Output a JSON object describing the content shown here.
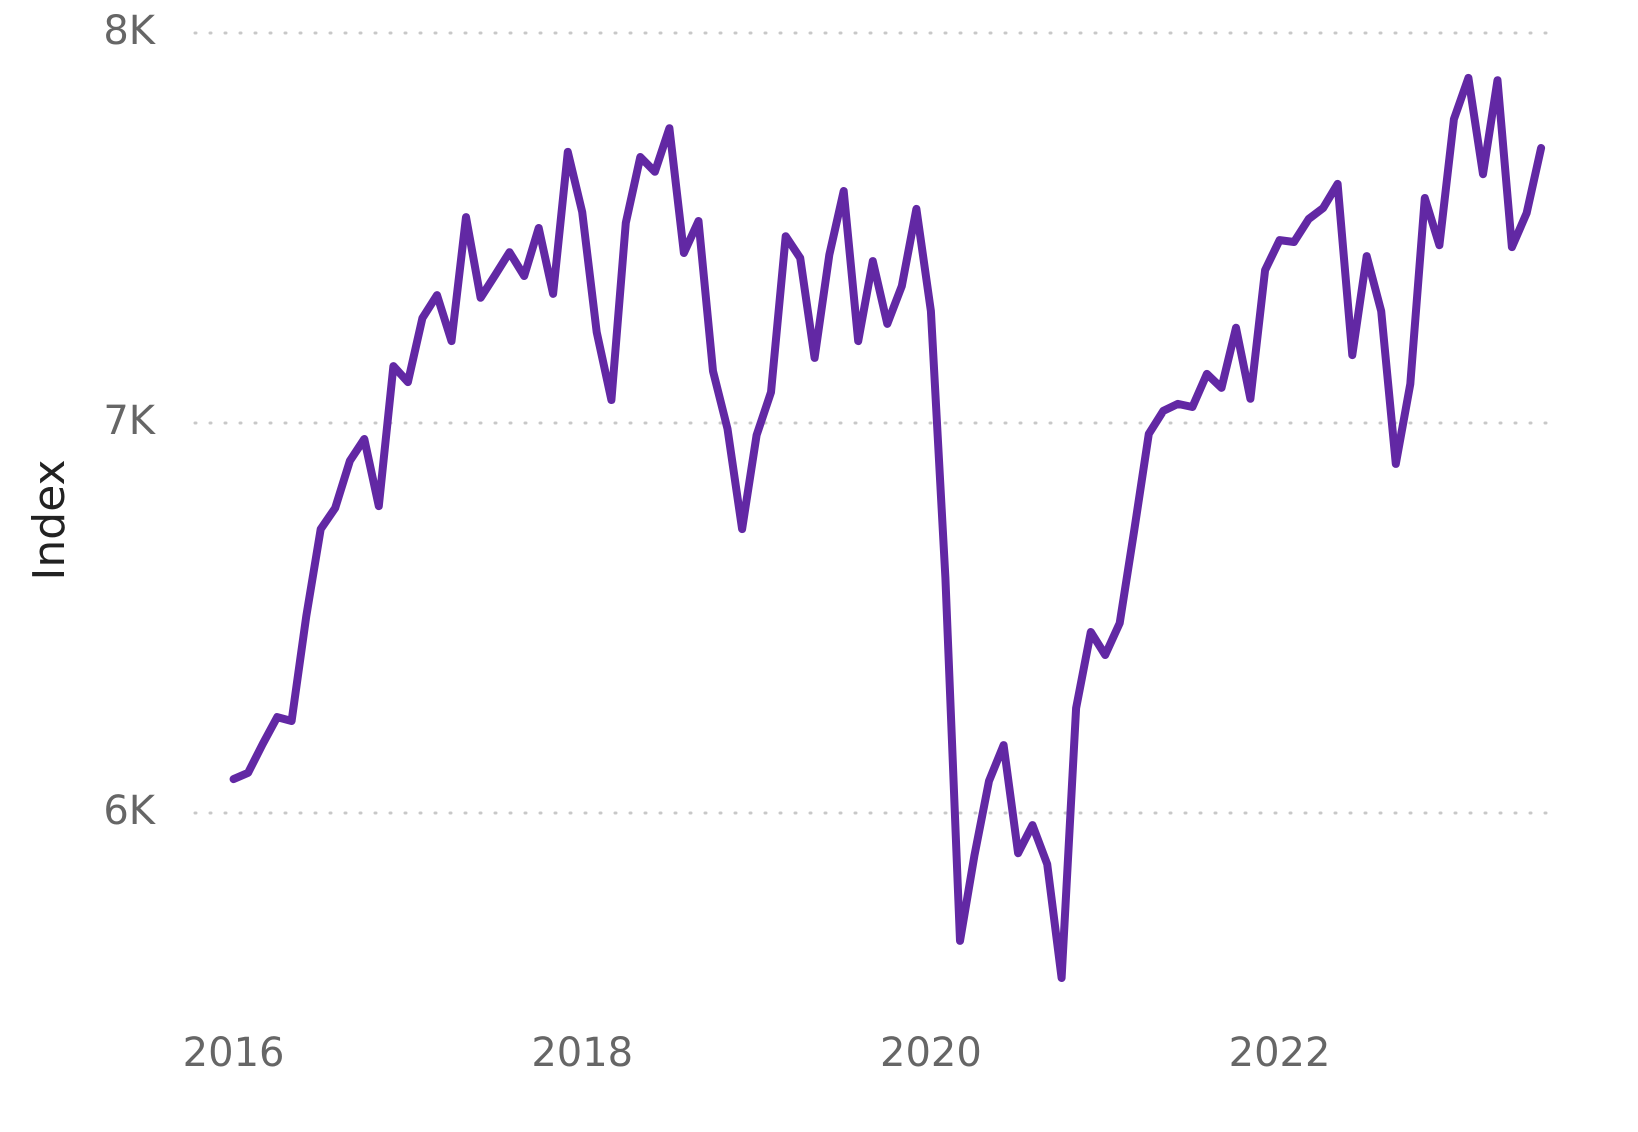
{
  "chart_data": {
    "type": "line",
    "ylabel": "Index",
    "x": [
      2016,
      2016.083,
      2016.167,
      2016.25,
      2016.333,
      2016.417,
      2016.5,
      2016.583,
      2016.667,
      2016.75,
      2016.833,
      2016.917,
      2017,
      2017.083,
      2017.167,
      2017.25,
      2017.333,
      2017.417,
      2017.5,
      2017.583,
      2017.667,
      2017.75,
      2017.833,
      2017.917,
      2018,
      2018.083,
      2018.167,
      2018.25,
      2018.333,
      2018.417,
      2018.5,
      2018.583,
      2018.667,
      2018.75,
      2018.833,
      2018.917,
      2019,
      2019.083,
      2019.167,
      2019.25,
      2019.333,
      2019.417,
      2019.5,
      2019.583,
      2019.667,
      2019.75,
      2019.833,
      2019.917,
      2020,
      2020.083,
      2020.167,
      2020.25,
      2020.333,
      2020.417,
      2020.5,
      2020.583,
      2020.667,
      2020.75,
      2020.833,
      2020.917,
      2021,
      2021.083,
      2021.167,
      2021.25,
      2021.333,
      2021.417,
      2021.5,
      2021.583,
      2021.667,
      2021.75,
      2021.833,
      2021.917,
      2022,
      2022.083,
      2022.167,
      2022.25,
      2022.333,
      2022.417,
      2022.5,
      2022.583,
      2022.667,
      2022.75,
      2022.833,
      2022.917,
      2023,
      2023.083,
      2023.167,
      2023.25,
      2023.333,
      2023.417,
      2023.5
    ],
    "series": [
      {
        "name": "Index",
        "color": "#6228a4",
        "values": [
          6087,
          6103,
          6177,
          6246,
          6236,
          6505,
          6728,
          6782,
          6903,
          6959,
          6787,
          7146,
          7105,
          7269,
          7328,
          7210,
          7528,
          7321,
          7379,
          7438,
          7377,
          7500,
          7331,
          7695,
          7541,
          7233,
          7059,
          7513,
          7682,
          7644,
          7756,
          7436,
          7518,
          7133,
          6985,
          6728,
          6969,
          7079,
          7479,
          7423,
          7167,
          7431,
          7595,
          7210,
          7415,
          7254,
          7351,
          7549,
          7287,
          6603,
          5672,
          5892,
          6082,
          6174,
          5897,
          5969,
          5869,
          5577,
          6269,
          6464,
          6405,
          6487,
          6726,
          6972,
          7031,
          7049,
          7041,
          7126,
          7090,
          7244,
          7062,
          7392,
          7469,
          7464,
          7523,
          7551,
          7613,
          7174,
          7428,
          7287,
          6895,
          7100,
          7577,
          7456,
          7779,
          7885,
          7638,
          7879,
          7451,
          7538,
          7705
        ]
      }
    ],
    "xlim": [
      2015.75,
      2023.58
    ],
    "xticks": [
      2016,
      2018,
      2020,
      2022
    ],
    "ylim": [
      5500,
      8050
    ],
    "yticks": [
      {
        "value": 6000,
        "label": "6K"
      },
      {
        "value": 7000,
        "label": "7K"
      },
      {
        "value": 8000,
        "label": "8K"
      }
    ],
    "grid": true
  }
}
